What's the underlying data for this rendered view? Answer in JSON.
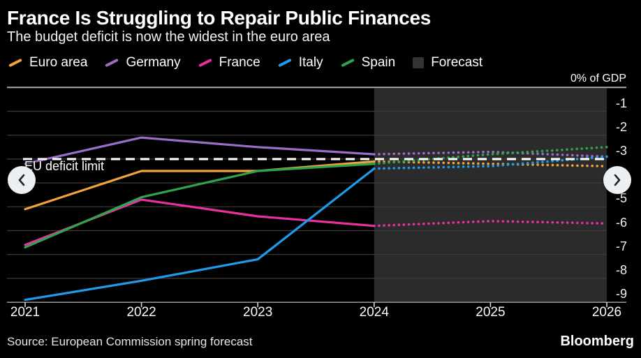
{
  "header": {
    "title": "France Is Struggling to Repair Public Finances",
    "subtitle": "The budget deficit is now the widest in the euro area"
  },
  "legend": {
    "items": [
      {
        "label": "Euro area",
        "color": "#F2A33C",
        "type": "line"
      },
      {
        "label": "Germany",
        "color": "#9B6CC9",
        "type": "line"
      },
      {
        "label": "France",
        "color": "#E8309F",
        "type": "line"
      },
      {
        "label": "Italy",
        "color": "#1E9BEC",
        "type": "line"
      },
      {
        "label": "Spain",
        "color": "#2EA44D",
        "type": "line"
      },
      {
        "label": "Forecast",
        "color": "#333333",
        "type": "square"
      }
    ]
  },
  "chart_data": {
    "type": "line",
    "title": "France Is Struggling to Repair Public Finances",
    "subtitle": "The budget deficit is now the widest in the euro area",
    "axis_title": "0% of GDP",
    "unit": "% of GDP",
    "x": [
      2021,
      2022,
      2023,
      2024,
      2025,
      2026
    ],
    "x_tick_labels": [
      "2021",
      "2022",
      "2023",
      "2024",
      "2025",
      "2026"
    ],
    "y_ticks": [
      -1,
      -2,
      -3,
      -4,
      -5,
      -6,
      -7,
      -8,
      -9
    ],
    "ylim": [
      -9.7,
      0
    ],
    "grid": true,
    "legend_position": "top",
    "series": [
      {
        "name": "Euro area",
        "color": "#F2A33C",
        "values": [
          -5.1,
          -3.5,
          -3.5,
          -3.1,
          -3.2,
          -3.3
        ]
      },
      {
        "name": "Germany",
        "color": "#9B6CC9",
        "values": [
          -3.2,
          -2.1,
          -2.5,
          -2.8,
          -2.7,
          -2.9
        ]
      },
      {
        "name": "France",
        "color": "#E8309F",
        "values": [
          -6.6,
          -4.7,
          -5.4,
          -5.8,
          -5.6,
          -5.7
        ]
      },
      {
        "name": "Italy",
        "color": "#1E9BEC",
        "values": [
          -8.9,
          -8.1,
          -7.2,
          -3.4,
          -3.3,
          -2.9
        ]
      },
      {
        "name": "Spain",
        "color": "#2EA44D",
        "values": [
          -6.7,
          -4.6,
          -3.5,
          -3.2,
          -2.8,
          -2.5
        ]
      }
    ],
    "forecast_band": {
      "label": "Forecast",
      "x_start": 2024,
      "x_end": 2026,
      "color": "#2B2B2B"
    },
    "reference_line": {
      "label": "EU deficit limit",
      "value": -3,
      "color": "#FFFFFF",
      "style": "dashed"
    }
  },
  "icons": {
    "prev": "chevron-left",
    "next": "chevron-right"
  },
  "footer": {
    "source": "Source: European Commission spring forecast",
    "brand": "Bloomberg"
  }
}
